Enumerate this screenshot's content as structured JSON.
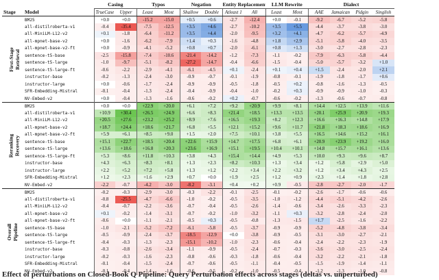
{
  "header": {
    "stage": "Stage",
    "model": "Model",
    "groups": [
      {
        "name": "Casing",
        "subs": [
          "TrueCase",
          "Upper"
        ]
      },
      {
        "name": "Typos",
        "subs": [
          "Least",
          "Most"
        ]
      },
      {
        "name": "Negation",
        "subs": [
          "Shallow",
          "Double"
        ]
      },
      {
        "name": "Entity Replacement",
        "subs": [
          "Atleast 1",
          "All"
        ]
      },
      {
        "name": "LLM Rewrite",
        "subs": [
          "Least",
          "Most"
        ]
      },
      {
        "name": "Dialect",
        "subs": [
          "AAE",
          "Jamaican",
          "Pidgin",
          "Singlish"
        ]
      }
    ]
  },
  "stages": [
    {
      "label_line1": "First-Stage",
      "label_line2": "Retrieval",
      "rows": [
        {
          "model": "BM25",
          "values": [
            "+0.0",
            "+0.0",
            "-15.2",
            "-15.0",
            "+0.5",
            "+0.6",
            "-2.7",
            "-12.4",
            "+0.0",
            "-0.1",
            "-9.2",
            "-6.7",
            "-5.2",
            "-5.8"
          ]
        },
        {
          "model": "all-distilroberta-v1",
          "values": [
            "-0.4",
            "-35.4",
            "-7.5",
            "-12.5",
            "+3.5",
            "+4.6",
            "-2.7",
            "-10.2",
            "+3.5",
            "+5.5",
            "-4.4",
            "-3.7",
            "-3.8",
            "-3.0"
          ]
        },
        {
          "model": "all-MiniLM-L12-v2",
          "values": [
            "+0.1",
            "-1.8",
            "-6.4",
            "-11.2",
            "+3.5",
            "+4.4",
            "-2.0",
            "-9.5",
            "+3.2",
            "+4.1",
            "-4.7",
            "-6.2",
            "-5.7",
            "-4.9"
          ]
        },
        {
          "model": "all-mpnet-base-v2",
          "values": [
            "+0.0",
            "-1.6",
            "-6.2",
            "-7.9",
            "+1.4",
            "+0.3",
            "-1.6",
            "-4.8",
            "+1.8",
            "+2.9",
            "-5.1",
            "-5.8",
            "-4.0",
            "-3.5"
          ]
        },
        {
          "model": "all-mpnet-base-v2-ft",
          "values": [
            "+0.0",
            "-0.9",
            "-4.1",
            "-5.2",
            "+0.8",
            "+0.7",
            "-2.0",
            "-6.1",
            "+0.8",
            "+1.3",
            "-3.0",
            "-2.7",
            "-2.8",
            "-2.3"
          ]
        },
        {
          "model": "sentence-t5-base",
          "values": [
            "-2.5",
            "-15.8",
            "-7.4",
            "-10.6",
            "-21.4",
            "-14.2",
            "-1.2",
            "-7.3",
            "-1.1",
            "-0.2",
            "-7.9",
            "-6.3",
            "-5.8",
            "-4.4"
          ]
        },
        {
          "model": "sentence-t5-large",
          "values": [
            "-1.0",
            "-9.7",
            "-5.1",
            "-8.2",
            "-27.2",
            "-14.7",
            "-0.4",
            "-6.6",
            "-1.5",
            "-0.4",
            "-5.0",
            "-5.7",
            "-3.2",
            "+1.0"
          ]
        },
        {
          "model": "sentence-t5-large-ft",
          "values": [
            "-0.6",
            "-2.2",
            "-2.9",
            "-4.1",
            "-6.1",
            "-4.5",
            "+0.1",
            "-2.4",
            "+0.1",
            "+0.4",
            "+1.5",
            "-2.4",
            "-2.0",
            "+2.1"
          ]
        },
        {
          "model": "instructor-base",
          "values": [
            "-0.2",
            "-1.3",
            "-2.4",
            "-3.0",
            "-0.9",
            "-0.7",
            "-0.1",
            "-1.9",
            "-0.8",
            "-0.1",
            "-1.9",
            "-1.8",
            "-1.7",
            "+0.6"
          ]
        },
        {
          "model": "instructor-large",
          "values": [
            "+0.0",
            "-0.6",
            "-1.7",
            "-2.4",
            "-0.9",
            "-0.9",
            "-0.5",
            "-1.8",
            "-0.5",
            "+0.2",
            "-0.8",
            "-1.6",
            "-1.3",
            "-0.5"
          ]
        },
        {
          "model": "SFR-Embedding-Mistral",
          "values": [
            "-0.1",
            "-0.4",
            "-1.3",
            "-2.4",
            "-0.4",
            "-0.9",
            "-0.4",
            "-1.0",
            "-0.2",
            "+0.3",
            "-0.9",
            "-0.9",
            "-1.0",
            "-0.3"
          ]
        },
        {
          "model": "NV-Embed-v2",
          "values": [
            "+0.0",
            "-0.4",
            "-1.3",
            "-1.6",
            "-0.6",
            "-0.2",
            "+0.2",
            "-0.7",
            "-0.6",
            "-0.2",
            "-1.3",
            "-0.6",
            "-0.7",
            "-0.8"
          ]
        }
      ]
    },
    {
      "label_line1": "Reranking",
      "label_line2": "Recovery",
      "rows": [
        {
          "model": "BM25",
          "values": [
            "+0.0",
            "+0.0",
            "+22.9",
            "+20.0",
            "+6.1",
            "+7.2",
            "+9.2",
            "+20.9",
            "+9.9",
            "+8.1",
            "+14.4",
            "+12.5",
            "+13.9",
            "+11.6"
          ]
        },
        {
          "model": "all-distilroberta-v1",
          "values": [
            "+10.9",
            "+30.4",
            "+26.5",
            "+24.9",
            "+6.6",
            "+8.3",
            "+21.4",
            "+18.5",
            "+13.3",
            "+13.5",
            "+20.1",
            "+25.9",
            "+20.9",
            "+19.3"
          ]
        },
        {
          "model": "all-MiniLM-L12-v2",
          "values": [
            "+20.5",
            "+27.6",
            "+23.2",
            "+25.2",
            "+8.9",
            "+7.6",
            "+16.5",
            "+19.3",
            "+8.2",
            "+12.3",
            "+16.6",
            "+16.3",
            "+14.8",
            "+17.9"
          ]
        },
        {
          "model": "all-mpnet-base-v2",
          "values": [
            "+18.7",
            "+24.4",
            "+18.6",
            "+21.7",
            "+6.8",
            "+5.5",
            "+12.1",
            "+15.2",
            "+9.6",
            "+11.7",
            "+21.8",
            "+18.3",
            "+18.6",
            "+16.9"
          ]
        },
        {
          "model": "all-mpnet-base-v2-ft",
          "values": [
            "+5.9",
            "+6.1",
            "+8.5",
            "+9.0",
            "+1.5",
            "+2.0",
            "+7.5",
            "+10.1",
            "+3.8",
            "+5.5",
            "+16.5",
            "+14.6",
            "+15.2",
            "+16.1"
          ]
        },
        {
          "model": "sentence-t5-base",
          "values": [
            "+15.1",
            "+22.7",
            "+18.5",
            "+20.4",
            "+22.6",
            "+15.9",
            "+14.7",
            "+17.5",
            "+6.8",
            "+6.1",
            "+20.9",
            "+23.9",
            "+19.2",
            "+16.0"
          ]
        },
        {
          "model": "sentence-t5-large",
          "values": [
            "+13.6",
            "+18.6",
            "+16.8",
            "+20.3",
            "+23.6",
            "+16.9",
            "+15.1",
            "+19.5",
            "+10.4",
            "+10.1",
            "+14.8",
            "+15.7",
            "+16.1",
            "+13.6"
          ]
        },
        {
          "model": "sentence-t5-large-ft",
          "values": [
            "+5.3",
            "+8.6",
            "+11.8",
            "+10.3",
            "+3.8",
            "+4.3",
            "+15.4",
            "+14.4",
            "+4.9",
            "+5.3",
            "+10.0",
            "+9.3",
            "+9.6",
            "+8.7"
          ]
        },
        {
          "model": "instructor-base",
          "values": [
            "+4.3",
            "+6.3",
            "+8.3",
            "+8.1",
            "+1.3",
            "+2.3",
            "+8.2",
            "+10.3",
            "+1.3",
            "+3.4",
            "+1.2",
            "+5.8",
            "+2.9",
            "+5.0"
          ]
        },
        {
          "model": "instructor-large",
          "values": [
            "+2.2",
            "+5.2",
            "+7.2",
            "+5.8",
            "+1.3",
            "+1.2",
            "+2.2",
            "+3.4",
            "+2.2",
            "+3.2",
            "+1.2",
            "+3.4",
            "+4.3",
            "+2.5"
          ]
        },
        {
          "model": "SFR-Embedding-Mistral",
          "values": [
            "+1.2",
            "+2.3",
            "+1.6",
            "+2.9",
            "+0.7",
            "+0.0",
            "+1.9",
            "+2.5",
            "+1.2",
            "+0.9",
            "+2.3",
            "+1.4",
            "+1.8",
            "+2.8"
          ]
        },
        {
          "model": "NV-Embed-v2",
          "values": [
            "-2.2",
            "-0.7",
            "-4.2",
            "-3.0",
            "-8.2",
            "-3.1",
            "+0.4",
            "+0.2",
            "+0.9",
            "-0.5",
            "-2.8",
            "-2.7",
            "-2.0",
            "-1.7"
          ]
        }
      ]
    },
    {
      "label_line1": "Overall",
      "label_line2": "Pipeline",
      "rows": [
        {
          "model": "BM25",
          "values": [
            "-0.2",
            "-0.3",
            "-2.9",
            "-3.0",
            "-0.3",
            "-2.2",
            "-0.1",
            "-2.5",
            "-0.1",
            "-0.2",
            "-2.6",
            "-1.7",
            "-0.6",
            "-0.6"
          ]
        },
        {
          "model": "all-distilroberta-v1",
          "values": [
            "-0.8",
            "-25.5",
            "-4.7",
            "-6.6",
            "-1.0",
            "-0.2",
            "-0.5",
            "-3.5",
            "-1.0",
            "-1.2",
            "-4.4",
            "-5.1",
            "-4.2",
            "-2.6"
          ]
        },
        {
          "model": "all-MiniLM-L12-v2",
          "values": [
            "-0.4",
            "-0.7",
            "-2.2",
            "-3.6",
            "-0.7",
            "-0.4",
            "-0.5",
            "-2.6",
            "-1.4",
            "-0.6",
            "-3.4",
            "-2.6",
            "-3.3",
            "-2.3"
          ]
        },
        {
          "model": "all-mpnet-base-v2",
          "values": [
            "+0.1",
            "-0.2",
            "-1.4",
            "-3.1",
            "-0.7",
            "-0.2",
            "-1.0",
            "-3.2",
            "-1.1",
            "+0.3",
            "-3.2",
            "-2.8",
            "-2.4",
            "-2.0"
          ]
        },
        {
          "model": "all-mpnet-base-v2-ft",
          "values": [
            "-0.6",
            "+0.0",
            "-1.1",
            "-2.1",
            "-0.5",
            "+0.3",
            "-0.5",
            "-0.8",
            "-1.3",
            "-1.5",
            "+1.7",
            "-2.5",
            "-1.6",
            "-2.2"
          ]
        },
        {
          "model": "sentence-t5-base",
          "values": [
            "-1.0",
            "-2.1",
            "-5.2",
            "-7.2",
            "-6.1",
            "-5.8",
            "-0.5",
            "-3.7",
            "-0.9",
            "-0.9",
            "-5.2",
            "-4.8",
            "-3.8",
            "-3.4"
          ]
        },
        {
          "model": "sentence-t5-large",
          "values": [
            "-0.5",
            "-0.9",
            "-2.4",
            "-3.7",
            "-18.5",
            "-12.9",
            "+0.0",
            "-3.8",
            "-0.9",
            "-0.5",
            "-3.1",
            "-3.0",
            "-2.7",
            "-2.1"
          ]
        },
        {
          "model": "sentence-t5-large-ft",
          "values": [
            "-0.4",
            "-0.3",
            "-1.3",
            "-2.3",
            "-15.1",
            "-10.2",
            "-1.0",
            "-2.3",
            "-0.6",
            "-0.4",
            "-2.4",
            "-2.2",
            "-2.3",
            "-1.9"
          ]
        },
        {
          "model": "instructor-base",
          "values": [
            "-0.3",
            "-0.8",
            "-2.6",
            "-3.4",
            "-1.1",
            "-0.9",
            "-0.5",
            "-2.4",
            "-0.7",
            "-0.3",
            "-3.6",
            "-3.0",
            "-2.5",
            "-2.4"
          ]
        },
        {
          "model": "instructor-large",
          "values": [
            "-0.2",
            "-0.3",
            "-1.6",
            "-2.3",
            "-0.8",
            "-0.6",
            "-0.3",
            "-1.8",
            "-0.6",
            "-0.4",
            "-3.2",
            "-2.2",
            "-2.1",
            "-1.8"
          ]
        },
        {
          "model": "SFR-Embedding-Mistral",
          "values": [
            "-0.1",
            "-0.4",
            "-1.5",
            "-2.4",
            "-0.7",
            "-0.6",
            "-0.5",
            "-1.1",
            "-0.4",
            "-0.5",
            "-1.5",
            "-1.9",
            "-1.4",
            "-1.1"
          ]
        },
        {
          "model": "NV-Embed-v2",
          "values": [
            "-0.1",
            "-0.4",
            "-1.4",
            "-1.6",
            "-0.6",
            "-0.5",
            "-0.2",
            "-1.0",
            "-0.5",
            "-0.4",
            "-1.2",
            "-1.3",
            "-1.0",
            "-0.8"
          ]
        }
      ]
    }
  ],
  "colors": {
    "negative": "#e9453f",
    "positive_stage1": "#4a86d8",
    "positive_stage2": "#5cbf3f",
    "negative_stage2": "#e9453f"
  },
  "caption": "Effect of perturbations on Closed-Book Q Pipeline: Query Perturbation effects across stages (deltas vs. unperturbed)"
}
